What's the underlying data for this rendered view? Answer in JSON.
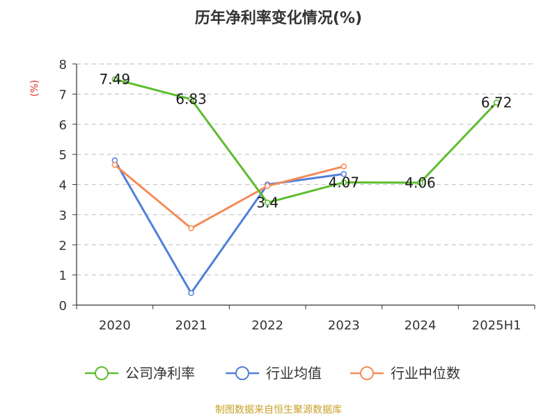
{
  "chart_data": {
    "type": "line",
    "title": "历年净利率变化情况(%)",
    "ylabel": "(%)",
    "xlabel": "",
    "categories": [
      "2020",
      "2021",
      "2022",
      "2023",
      "2024",
      "2025H1"
    ],
    "ylim": [
      0,
      8
    ],
    "yticks": [
      "0",
      "1",
      "2",
      "3",
      "4",
      "5",
      "6",
      "7",
      "8"
    ],
    "grid": true,
    "legend_position": "bottom",
    "series": [
      {
        "name": "公司净利率",
        "color": "#5cbd2e",
        "values": [
          7.49,
          6.83,
          3.4,
          4.07,
          4.06,
          6.72
        ],
        "labels": [
          "7.49",
          "6.83",
          "3.4",
          "4.07",
          "4.06",
          "6.72"
        ]
      },
      {
        "name": "行业均值",
        "color": "#4f7fd9",
        "values": [
          4.8,
          0.4,
          4.0,
          4.35,
          null,
          null
        ]
      },
      {
        "name": "行业中位数",
        "color": "#f48c57",
        "values": [
          4.65,
          2.55,
          3.95,
          4.6,
          null,
          null
        ]
      }
    ]
  },
  "footer": "制图数据来自恒生聚源数据库"
}
